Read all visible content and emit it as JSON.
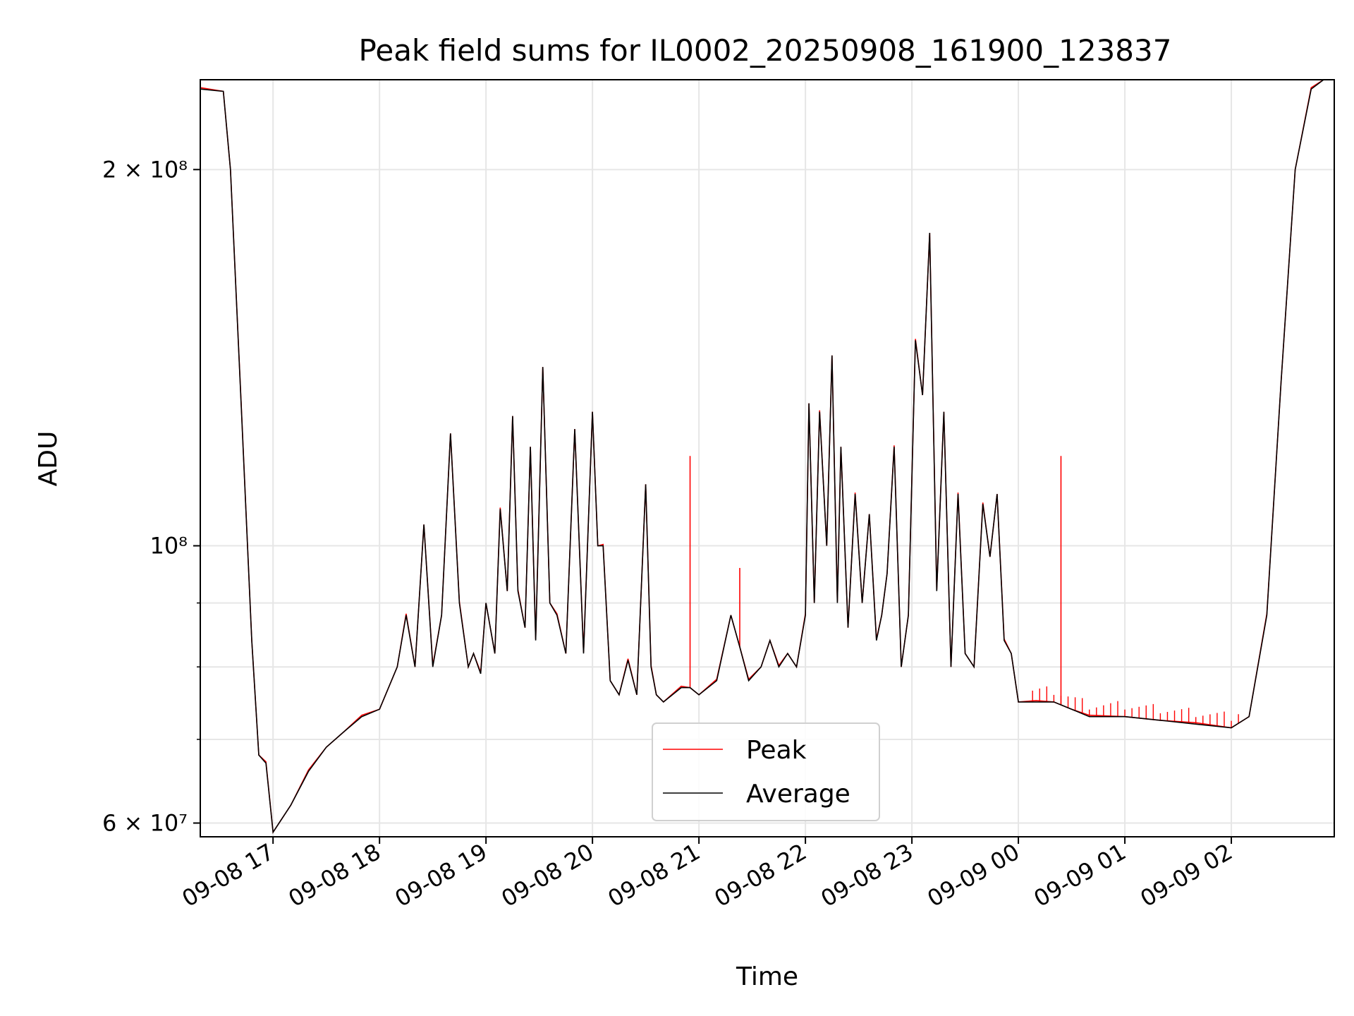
{
  "chart_data": {
    "type": "line",
    "title": "Peak field sums for IL0002_20250908_161900_123837",
    "xlabel": "Time",
    "ylabel": "ADU",
    "yscale": "log",
    "ylim": [
      58500000,
      236000000
    ],
    "xlim": [
      "2025-09-08 16:19",
      "2025-09-09 02:58"
    ],
    "grid": true,
    "legend_position": "lower-center",
    "x_ticks": [
      "09-08 17",
      "09-08 18",
      "09-08 19",
      "09-08 20",
      "09-08 21",
      "09-08 22",
      "09-08 23",
      "09-09 00",
      "09-09 01",
      "09-09 02"
    ],
    "x_tick_rotation": 30,
    "y_ticks": [
      {
        "value": 60000000,
        "label": "6 × 10⁷"
      },
      {
        "value": 100000000,
        "label": "10⁸"
      },
      {
        "value": 200000000,
        "label": "2 × 10⁸"
      }
    ],
    "y_minor_ticks": [
      70000000,
      80000000,
      90000000
    ],
    "series": [
      {
        "name": "Peak",
        "color": "#ff0000",
        "spikes": [
          {
            "x": "2025-09-08 20:55",
            "y": 118000000
          },
          {
            "x": "2025-09-09 00:24",
            "y": 118000000
          },
          {
            "x": "2025-09-08 21:23",
            "y": 96000000
          }
        ],
        "noise_above_average_after": "2025-09-08 23:58"
      },
      {
        "name": "Average",
        "color": "#000000",
        "x": [
          "2025-09-08 16:19",
          "2025-09-08 16:32",
          "2025-09-08 16:36",
          "2025-09-08 16:42",
          "2025-09-08 16:48",
          "2025-09-08 16:52",
          "2025-09-08 16:56",
          "2025-09-08 17:00",
          "2025-09-08 17:10",
          "2025-09-08 17:20",
          "2025-09-08 17:30",
          "2025-09-08 17:40",
          "2025-09-08 17:50",
          "2025-09-08 18:00",
          "2025-09-08 18:10",
          "2025-09-08 18:15",
          "2025-09-08 18:20",
          "2025-09-08 18:25",
          "2025-09-08 18:30",
          "2025-09-08 18:35",
          "2025-09-08 18:40",
          "2025-09-08 18:45",
          "2025-09-08 18:50",
          "2025-09-08 18:53",
          "2025-09-08 18:57",
          "2025-09-08 19:00",
          "2025-09-08 19:05",
          "2025-09-08 19:08",
          "2025-09-08 19:12",
          "2025-09-08 19:15",
          "2025-09-08 19:18",
          "2025-09-08 19:22",
          "2025-09-08 19:25",
          "2025-09-08 19:28",
          "2025-09-08 19:32",
          "2025-09-08 19:36",
          "2025-09-08 19:40",
          "2025-09-08 19:45",
          "2025-09-08 19:50",
          "2025-09-08 19:55",
          "2025-09-08 20:00",
          "2025-09-08 20:03",
          "2025-09-08 20:06",
          "2025-09-08 20:10",
          "2025-09-08 20:15",
          "2025-09-08 20:20",
          "2025-09-08 20:25",
          "2025-09-08 20:30",
          "2025-09-08 20:33",
          "2025-09-08 20:36",
          "2025-09-08 20:40",
          "2025-09-08 20:50",
          "2025-09-08 20:55",
          "2025-09-08 21:00",
          "2025-09-08 21:10",
          "2025-09-08 21:18",
          "2025-09-08 21:23",
          "2025-09-08 21:28",
          "2025-09-08 21:35",
          "2025-09-08 21:40",
          "2025-09-08 21:45",
          "2025-09-08 21:50",
          "2025-09-08 21:55",
          "2025-09-08 22:00",
          "2025-09-08 22:02",
          "2025-09-08 22:05",
          "2025-09-08 22:08",
          "2025-09-08 22:12",
          "2025-09-08 22:15",
          "2025-09-08 22:18",
          "2025-09-08 22:20",
          "2025-09-08 22:24",
          "2025-09-08 22:28",
          "2025-09-08 22:32",
          "2025-09-08 22:36",
          "2025-09-08 22:40",
          "2025-09-08 22:43",
          "2025-09-08 22:46",
          "2025-09-08 22:50",
          "2025-09-08 22:54",
          "2025-09-08 22:58",
          "2025-09-08 23:02",
          "2025-09-08 23:06",
          "2025-09-08 23:10",
          "2025-09-08 23:14",
          "2025-09-08 23:18",
          "2025-09-08 23:22",
          "2025-09-08 23:26",
          "2025-09-08 23:30",
          "2025-09-08 23:35",
          "2025-09-08 23:40",
          "2025-09-08 23:44",
          "2025-09-08 23:48",
          "2025-09-08 23:52",
          "2025-09-08 23:56",
          "2025-09-09 00:00",
          "2025-09-09 00:10",
          "2025-09-09 00:20",
          "2025-09-09 00:30",
          "2025-09-09 00:40",
          "2025-09-09 01:00",
          "2025-09-09 01:20",
          "2025-09-09 01:40",
          "2025-09-09 02:00",
          "2025-09-09 02:10",
          "2025-09-09 02:20",
          "2025-09-09 02:28",
          "2025-09-09 02:36",
          "2025-09-09 02:45",
          "2025-09-09 02:52",
          "2025-09-09 02:58"
        ],
        "values": [
          232000000,
          231000000,
          200000000,
          130000000,
          84000000,
          68000000,
          67000000,
          59000000,
          62000000,
          66000000,
          69000000,
          71000000,
          73000000,
          74000000,
          80000000,
          88000000,
          80000000,
          104000000,
          80000000,
          88000000,
          123000000,
          90000000,
          80000000,
          82000000,
          79000000,
          90000000,
          82000000,
          107000000,
          92000000,
          127000000,
          92000000,
          86000000,
          120000000,
          84000000,
          139000000,
          90000000,
          88000000,
          82000000,
          124000000,
          82000000,
          128000000,
          100000000,
          100000000,
          78000000,
          76000000,
          81000000,
          76000000,
          112000000,
          80000000,
          76000000,
          75000000,
          77000000,
          77000000,
          76000000,
          78000000,
          88000000,
          83000000,
          78000000,
          80000000,
          84000000,
          80000000,
          82000000,
          80000000,
          88000000,
          130000000,
          90000000,
          128000000,
          100000000,
          142000000,
          90000000,
          120000000,
          86000000,
          110000000,
          90000000,
          106000000,
          84000000,
          88000000,
          95000000,
          120000000,
          80000000,
          88000000,
          146000000,
          132000000,
          178000000,
          92000000,
          128000000,
          80000000,
          110000000,
          82000000,
          80000000,
          108000000,
          98000000,
          110000000,
          84000000,
          82000000,
          75000000,
          75000000,
          75000000,
          74000000,
          73000000,
          73000000,
          72500000,
          72000000,
          71500000,
          73000000,
          88000000,
          135000000,
          200000000,
          232000000,
          236000000,
          236000000
        ]
      }
    ]
  }
}
